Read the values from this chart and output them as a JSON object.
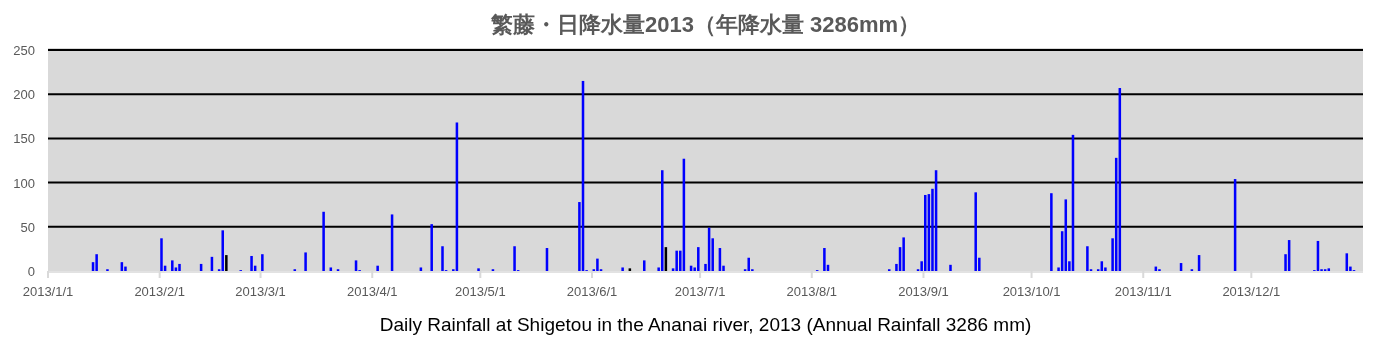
{
  "chart_data": {
    "type": "bar",
    "title": "繁藤・日降水量2013（年降水量 3286mm）",
    "xlabel": "Daily Rainfall at Shigetou in the Ananai river, 2013 (Annual Rainfall 3286 mm)",
    "x": [
      "2013-01-13",
      "2013-01-14",
      "2013-01-17",
      "2013-01-21",
      "2013-01-22",
      "2013-02-01",
      "2013-02-02",
      "2013-02-04",
      "2013-02-05",
      "2013-02-06",
      "2013-02-12",
      "2013-02-15",
      "2013-02-17",
      "2013-02-18",
      "2013-02-19",
      "2013-02-23",
      "2013-02-26",
      "2013-02-27",
      "2013-03-01",
      "2013-03-10",
      "2013-03-13",
      "2013-03-18",
      "2013-03-20",
      "2013-03-22",
      "2013-03-27",
      "2013-03-28",
      "2013-04-02",
      "2013-04-06",
      "2013-04-14",
      "2013-04-17",
      "2013-04-20",
      "2013-04-21",
      "2013-04-23",
      "2013-04-24",
      "2013-04-30",
      "2013-05-04",
      "2013-05-10",
      "2013-05-11",
      "2013-05-19",
      "2013-05-28",
      "2013-05-29",
      "2013-05-30",
      "2013-06-01",
      "2013-06-02",
      "2013-06-03",
      "2013-06-09",
      "2013-06-11",
      "2013-06-15",
      "2013-06-19",
      "2013-06-20",
      "2013-06-21",
      "2013-06-23",
      "2013-06-24",
      "2013-06-25",
      "2013-06-26",
      "2013-06-28",
      "2013-06-29",
      "2013-06-30",
      "2013-07-02",
      "2013-07-03",
      "2013-07-04",
      "2013-07-06",
      "2013-07-07",
      "2013-07-13",
      "2013-07-14",
      "2013-07-15",
      "2013-08-02",
      "2013-08-04",
      "2013-08-05",
      "2013-08-22",
      "2013-08-24",
      "2013-08-25",
      "2013-08-26",
      "2013-08-30",
      "2013-08-31",
      "2013-09-01",
      "2013-09-02",
      "2013-09-03",
      "2013-09-04",
      "2013-09-08",
      "2013-09-15",
      "2013-09-16",
      "2013-10-06",
      "2013-10-08",
      "2013-10-09",
      "2013-10-10",
      "2013-10-11",
      "2013-10-12",
      "2013-10-16",
      "2013-10-17",
      "2013-10-19",
      "2013-10-20",
      "2013-10-21",
      "2013-10-23",
      "2013-10-24",
      "2013-10-25",
      "2013-11-04",
      "2013-11-05",
      "2013-11-11",
      "2013-11-14",
      "2013-11-16",
      "2013-11-26",
      "2013-12-10",
      "2013-12-11",
      "2013-12-18",
      "2013-12-19",
      "2013-12-20",
      "2013-12-21",
      "2013-12-22",
      "2013-12-27",
      "2013-12-28",
      "2013-12-29"
    ],
    "values": [
      10,
      19,
      2,
      10,
      5,
      37,
      6,
      12,
      4,
      8,
      8,
      16,
      2,
      46,
      18,
      1,
      17,
      6,
      19,
      2,
      21,
      67,
      4,
      2,
      12,
      1,
      6,
      64,
      4,
      53,
      28,
      1,
      2,
      168,
      3,
      2,
      28,
      1,
      26,
      78,
      215,
      1,
      2,
      14,
      2,
      4,
      3,
      12,
      4,
      114,
      27,
      3,
      23,
      23,
      127,
      6,
      4,
      27,
      8,
      49,
      37,
      26,
      6,
      2,
      15,
      2,
      1,
      26,
      7,
      2,
      8,
      27,
      38,
      2,
      11,
      86,
      87,
      93,
      114,
      7,
      89,
      15,
      88,
      4,
      45,
      81,
      11,
      154,
      28,
      2,
      2,
      11,
      4,
      37,
      128,
      207,
      5,
      2,
      9,
      2,
      18,
      104,
      19,
      35,
      1,
      34,
      2,
      2,
      3,
      20,
      5,
      1
    ],
    "colors": [
      "#0000ff",
      "#0000ff",
      "#0000ff",
      "#0000ff",
      "#0000ff",
      "#0000ff",
      "#0000ff",
      "#0000ff",
      "#0000ff",
      "#0000ff",
      "#0000ff",
      "#0000ff",
      "#0000ff",
      "#0000ff",
      "#000000",
      "#0000ff",
      "#0000ff",
      "#0000ff",
      "#0000ff",
      "#0000ff",
      "#0000ff",
      "#0000ff",
      "#0000ff",
      "#0000ff",
      "#0000ff",
      "#0000ff",
      "#0000ff",
      "#0000ff",
      "#0000ff",
      "#0000ff",
      "#0000ff",
      "#0000ff",
      "#0000ff",
      "#0000ff",
      "#0000ff",
      "#0000ff",
      "#0000ff",
      "#0000ff",
      "#0000ff",
      "#0000ff",
      "#0000ff",
      "#0000ff",
      "#0000ff",
      "#0000ff",
      "#0000ff",
      "#0000ff",
      "#000000",
      "#0000ff",
      "#0000ff",
      "#0000ff",
      "#000000",
      "#0000ff",
      "#0000ff",
      "#0000ff",
      "#0000ff",
      "#0000ff",
      "#0000ff",
      "#0000ff",
      "#0000ff",
      "#0000ff",
      "#0000ff",
      "#0000ff",
      "#0000ff",
      "#0000ff",
      "#0000ff",
      "#0000ff",
      "#0000ff",
      "#0000ff",
      "#0000ff",
      "#0000ff",
      "#0000ff",
      "#0000ff",
      "#0000ff",
      "#0000ff",
      "#0000ff",
      "#0000ff",
      "#0000ff",
      "#0000ff",
      "#0000ff",
      "#0000ff",
      "#0000ff",
      "#0000ff",
      "#0000ff",
      "#0000ff",
      "#0000ff",
      "#0000ff",
      "#0000ff",
      "#0000ff",
      "#0000ff",
      "#0000ff",
      "#0000ff",
      "#0000ff",
      "#0000ff",
      "#0000ff",
      "#0000ff",
      "#0000ff",
      "#0000ff",
      "#0000ff",
      "#0000ff",
      "#0000ff",
      "#0000ff",
      "#0000ff",
      "#0000ff",
      "#0000ff",
      "#0000ff",
      "#0000ff",
      "#0000ff",
      "#0000ff",
      "#0000ff",
      "#0000ff",
      "#0000ff",
      "#0000ff"
    ],
    "xlim": [
      "2013-01-01",
      "2014-01-01"
    ],
    "xticks": [
      {
        "value": "2013-01-01",
        "label": "2013/1/1"
      },
      {
        "value": "2013-02-01",
        "label": "2013/2/1"
      },
      {
        "value": "2013-03-01",
        "label": "2013/3/1"
      },
      {
        "value": "2013-04-01",
        "label": "2013/4/1"
      },
      {
        "value": "2013-05-01",
        "label": "2013/5/1"
      },
      {
        "value": "2013-06-01",
        "label": "2013/6/1"
      },
      {
        "value": "2013-07-01",
        "label": "2013/7/1"
      },
      {
        "value": "2013-08-01",
        "label": "2013/8/1"
      },
      {
        "value": "2013-09-01",
        "label": "2013/9/1"
      },
      {
        "value": "2013-10-01",
        "label": "2013/10/1"
      },
      {
        "value": "2013-11-01",
        "label": "2013/11/1"
      },
      {
        "value": "2013-12-01",
        "label": "2013/12/1"
      }
    ],
    "ylim": [
      0,
      250
    ],
    "yticks": [
      0,
      50,
      100,
      150,
      200,
      250
    ],
    "grid": "y"
  }
}
